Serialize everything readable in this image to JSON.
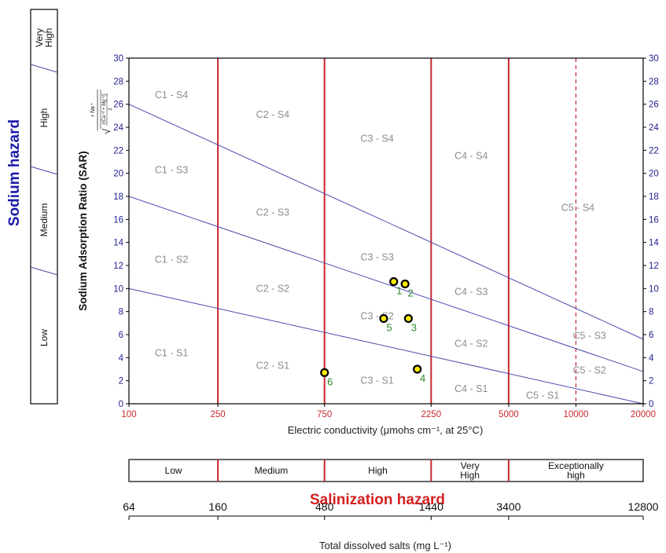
{
  "chart_data": {
    "type": "scatter",
    "xlabel": "Electric conductivity (μmohs cm⁻¹, at 25°C)",
    "ylabel": "Sodium Adsorption Ratio (SAR)",
    "ylabel_formula": {
      "numerator": "r Na⁺",
      "denominator": "r(Ca⁺² + Mg⁺²)",
      "divisor": "2"
    },
    "x_scale": "log",
    "x_range": [
      100,
      20000
    ],
    "y_range": [
      0,
      30
    ],
    "x_tick_labels": [
      "100",
      "250",
      "750",
      "2250",
      "5000",
      "10000",
      "20000"
    ],
    "x_tick_values": [
      100,
      250,
      750,
      2250,
      5000,
      10000,
      20000
    ],
    "y_ticks": [
      0,
      2,
      4,
      6,
      8,
      10,
      12,
      14,
      16,
      18,
      20,
      22,
      24,
      26,
      28,
      30
    ],
    "vertical_lines": [
      {
        "x": 250,
        "style": "solid"
      },
      {
        "x": 750,
        "style": "solid"
      },
      {
        "x": 2250,
        "style": "solid"
      },
      {
        "x": 5000,
        "style": "solid"
      },
      {
        "x": 10000,
        "style": "dashed"
      }
    ],
    "boundary_lines": [
      {
        "from": [
          100,
          10
        ],
        "to": [
          20000,
          0
        ]
      },
      {
        "from": [
          100,
          18
        ],
        "to": [
          20000,
          2.8
        ]
      },
      {
        "from": [
          100,
          26
        ],
        "to": [
          20000,
          5.6
        ]
      }
    ],
    "class_labels": [
      {
        "text": "C1 - S4",
        "x": 155,
        "y": 26.8
      },
      {
        "text": "C1 - S3",
        "x": 155,
        "y": 20.3
      },
      {
        "text": "C1 - S2",
        "x": 155,
        "y": 12.5
      },
      {
        "text": "C1 - S1",
        "x": 155,
        "y": 4.4
      },
      {
        "text": "C2 - S4",
        "x": 440,
        "y": 25.1
      },
      {
        "text": "C2 - S3",
        "x": 440,
        "y": 16.6
      },
      {
        "text": "C2 - S2",
        "x": 440,
        "y": 10.0
      },
      {
        "text": "C2 - S1",
        "x": 440,
        "y": 3.3
      },
      {
        "text": "C3 - S4",
        "x": 1290,
        "y": 23.0
      },
      {
        "text": "C3 - S3",
        "x": 1290,
        "y": 12.7
      },
      {
        "text": "C3 - S2",
        "x": 1290,
        "y": 7.6
      },
      {
        "text": "C3 - S1",
        "x": 1290,
        "y": 2.0
      },
      {
        "text": "C4 - S4",
        "x": 3400,
        "y": 21.5
      },
      {
        "text": "C4 - S3",
        "x": 3400,
        "y": 9.7
      },
      {
        "text": "C4 - S2",
        "x": 3400,
        "y": 5.2
      },
      {
        "text": "C4 - S1",
        "x": 3400,
        "y": 1.3
      },
      {
        "text": "C5 - S4",
        "x": 10200,
        "y": 17.0
      },
      {
        "text": "C5 - S3",
        "x": 11500,
        "y": 5.9
      },
      {
        "text": "C5 - S2",
        "x": 11500,
        "y": 2.9
      },
      {
        "text": "C5 - S1",
        "x": 7100,
        "y": 0.7
      }
    ],
    "points": [
      {
        "label": "1",
        "x": 1530,
        "y": 10.6
      },
      {
        "label": "2",
        "x": 1720,
        "y": 10.4
      },
      {
        "label": "3",
        "x": 1780,
        "y": 7.4
      },
      {
        "label": "4",
        "x": 1950,
        "y": 3.0
      },
      {
        "label": "5",
        "x": 1380,
        "y": 7.4
      },
      {
        "label": "6",
        "x": 750,
        "y": 2.7
      }
    ]
  },
  "sodium_hazard": {
    "title": "Sodium hazard",
    "bands": [
      {
        "label": "Very High",
        "lines": [
          "Very",
          "High"
        ],
        "y_top": 30,
        "y_bottom": 26
      },
      {
        "label": "High",
        "lines": [
          "High"
        ],
        "y_top": 26,
        "y_bottom": 18
      },
      {
        "label": "Medium",
        "lines": [
          "Medium"
        ],
        "y_top": 18,
        "y_bottom": 10
      },
      {
        "label": "Low",
        "lines": [
          "Low"
        ],
        "y_top": 10,
        "y_bottom": 0
      }
    ]
  },
  "salinization_hazard": {
    "title": "Salinization hazard",
    "bands": [
      {
        "label": "Low",
        "lines": [
          "Low"
        ],
        "x_from": 100,
        "x_to": 250
      },
      {
        "label": "Medium",
        "lines": [
          "Medium"
        ],
        "x_from": 250,
        "x_to": 750
      },
      {
        "label": "High",
        "lines": [
          "High"
        ],
        "x_from": 750,
        "x_to": 2250
      },
      {
        "label": "Very High",
        "lines": [
          "Very",
          "High"
        ],
        "x_from": 2250,
        "x_to": 5000
      },
      {
        "label": "Exceptionally high",
        "lines": [
          "Exceptionally",
          "high"
        ],
        "x_from": 5000,
        "x_to": 20000
      }
    ]
  },
  "tds_axis": {
    "label": "Total dissolved salts (mg L⁻¹)",
    "ticks": [
      {
        "label": "64",
        "ec": 100
      },
      {
        "label": "160",
        "ec": 250
      },
      {
        "label": "480",
        "ec": 750
      },
      {
        "label": "1440",
        "ec": 2250
      },
      {
        "label": "3400",
        "ec": 5000
      },
      {
        "label": "12800",
        "ec": 20000
      }
    ]
  },
  "colors": {
    "vertical_line": "#c8282c",
    "boundary_line": "#4a4ab0",
    "class_label": "#8c8c8c",
    "x_tick": "#c8282c",
    "y_tick": "#1f1f8f",
    "sodium_title": "#1a1aa8",
    "salinization_title": "#d42020",
    "point_fill": "#ffee00",
    "point_stroke": "#000000",
    "point_label": "#2a8a2a"
  }
}
